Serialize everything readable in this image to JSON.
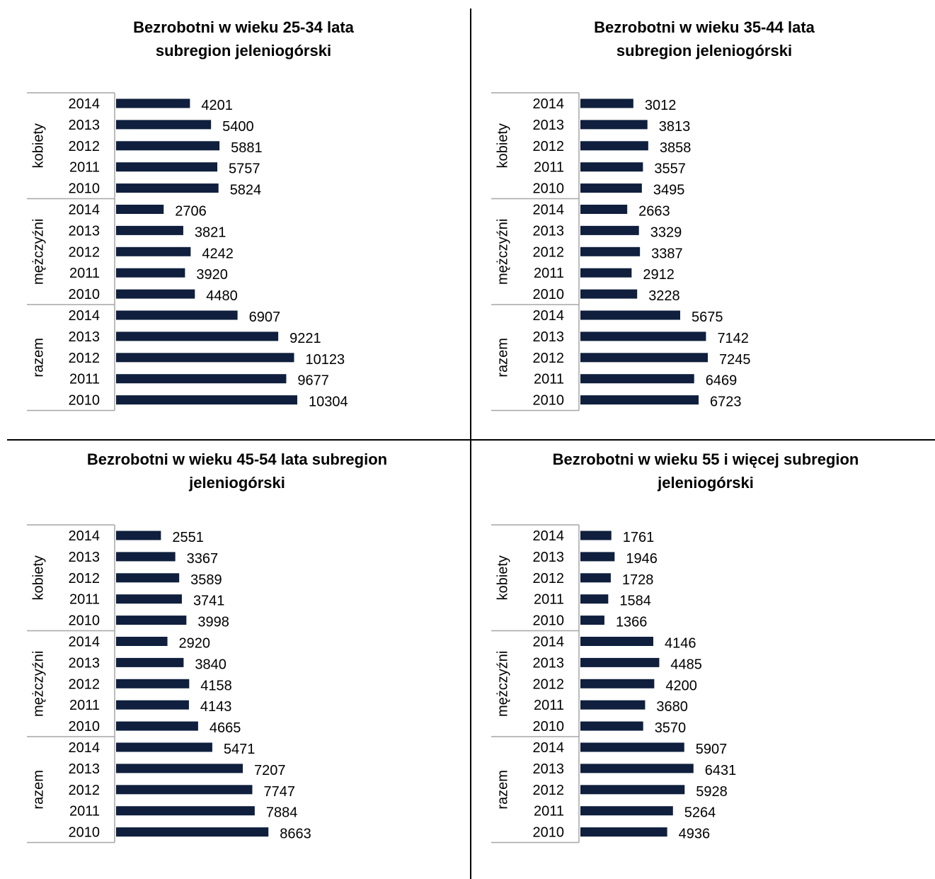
{
  "palette": {
    "bar": "#0f1f3d",
    "axis": "#a6a6a6",
    "divider": "#000000"
  },
  "chart_data": [
    {
      "type": "bar",
      "orientation": "horizontal",
      "title_lines": [
        "Bezrobotni w wieku 25-34 lata",
        "subregion jeleniogórski"
      ],
      "groups": [
        "kobiety",
        "mężczyźni",
        "razem"
      ],
      "categories": [
        "2014",
        "2013",
        "2012",
        "2011",
        "2010"
      ],
      "values": [
        [
          4201,
          5400,
          5881,
          5757,
          5824
        ],
        [
          2706,
          3821,
          4242,
          3920,
          4480
        ],
        [
          6907,
          9221,
          10123,
          9677,
          10304
        ]
      ],
      "data_labels": true,
      "grid": false,
      "legend": "none"
    },
    {
      "type": "bar",
      "orientation": "horizontal",
      "title_lines": [
        "Bezrobotni w wieku 35-44 lata",
        "subregion jeleniogórski"
      ],
      "groups": [
        "kobiety",
        "mężczyźni",
        "razem"
      ],
      "categories": [
        "2014",
        "2013",
        "2012",
        "2011",
        "2010"
      ],
      "values": [
        [
          3012,
          3813,
          3858,
          3557,
          3495
        ],
        [
          2663,
          3329,
          3387,
          2912,
          3228
        ],
        [
          5675,
          7142,
          7245,
          6469,
          6723
        ]
      ],
      "data_labels": true,
      "grid": false,
      "legend": "none"
    },
    {
      "type": "bar",
      "orientation": "horizontal",
      "title_lines": [
        "Bezrobotni w wieku 45-54 lata subregion",
        "jeleniogórski"
      ],
      "groups": [
        "kobiety",
        "mężczyźni",
        "razem"
      ],
      "categories": [
        "2014",
        "2013",
        "2012",
        "2011",
        "2010"
      ],
      "values": [
        [
          2551,
          3367,
          3589,
          3741,
          3998
        ],
        [
          2920,
          3840,
          4158,
          4143,
          4665
        ],
        [
          5471,
          7207,
          7747,
          7884,
          8663
        ]
      ],
      "data_labels": true,
      "grid": false,
      "legend": "none"
    },
    {
      "type": "bar",
      "orientation": "horizontal",
      "title_lines": [
        "Bezrobotni w wieku 55 i więcej  subregion",
        "jeleniogórski"
      ],
      "groups": [
        "kobiety",
        "mężczyźni",
        "razem"
      ],
      "categories": [
        "2014",
        "2013",
        "2012",
        "2011",
        "2010"
      ],
      "values": [
        [
          1761,
          1946,
          1728,
          1584,
          1366
        ],
        [
          4146,
          4485,
          4200,
          3680,
          3570
        ],
        [
          5907,
          6431,
          5928,
          5264,
          4936
        ]
      ],
      "data_labels": true,
      "grid": false,
      "legend": "none"
    }
  ]
}
